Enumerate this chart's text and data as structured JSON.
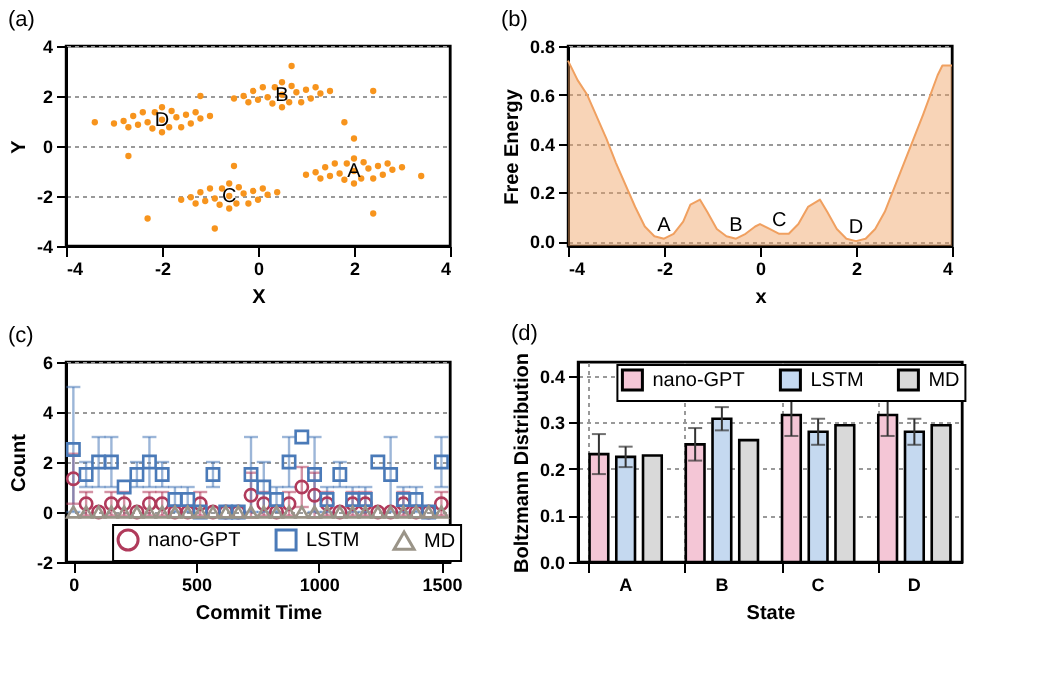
{
  "chart_data": [
    {
      "type": "scatter",
      "title": "(a)",
      "xlabel": "X",
      "ylabel": "Y",
      "xlim": [
        -4,
        4
      ],
      "ylim": [
        -4,
        4
      ],
      "xticks": [
        -4,
        -2,
        0,
        2,
        4
      ],
      "yticks": [
        -4,
        -2,
        0,
        2,
        4
      ],
      "grid": "y",
      "series": [
        {
          "color": "#f7941d",
          "marker": "circle",
          "x": [
            2,
            2.3,
            1.7,
            2.5,
            1.5,
            2.6,
            1.4,
            2.2,
            1.8,
            2.15,
            1.85,
            2.4,
            1.6,
            2.8,
            1.2,
            2.7,
            1.3,
            2,
            2,
            3.0,
            1.0,
            0.5,
            0.8,
            0.2,
            1.0,
            0,
            1.1,
            -0.1,
            0.7,
            0.3,
            0.65,
            0.35,
            0.9,
            0.1,
            1.3,
            -0.3,
            1.2,
            -0.2,
            0.5,
            0.5,
            1.5,
            -0.5,
            -0.6,
            -0.3,
            -0.9,
            -0.1,
            -1.1,
            0,
            -1.2,
            -0.4,
            -0.8,
            -0.45,
            -0.75,
            -0.2,
            -1.0,
            0.2,
            -1.4,
            0.1,
            -1.3,
            -0.6,
            -0.6,
            0.4,
            -1.6,
            -2,
            -1.7,
            -2.3,
            -1.5,
            -2.5,
            -1.4,
            -2.6,
            -1.8,
            -2.2,
            -1.85,
            -2.15,
            -1.6,
            -2.4,
            -1.2,
            -2.8,
            -1.3,
            -2.7,
            -2,
            -2,
            -1.0,
            -3.0,
            3.4,
            2.4,
            -0.9,
            -3.4,
            -2.7,
            -2.3,
            2.0,
            0.7,
            2.4,
            1.8,
            -0.5,
            -1.2
          ],
          "values": [
            -1,
            -0.9,
            -1.1,
            -0.8,
            -1.2,
            -1.15,
            -0.85,
            -0.65,
            -1.35,
            -1.3,
            -0.7,
            -1.3,
            -0.7,
            -0.95,
            -1.05,
            -0.7,
            -1.3,
            -0.5,
            -1.5,
            -0.85,
            -1.15,
            2.05,
            2.15,
            1.95,
            2.25,
            1.85,
            1.9,
            2.2,
            2.4,
            1.7,
            1.75,
            2.35,
            1.75,
            2.35,
            2.1,
            2.0,
            2.35,
            1.75,
            2.55,
            1.55,
            2.2,
            1.9,
            -2,
            -1.9,
            -2.1,
            -1.8,
            -2.2,
            -2.15,
            -1.85,
            -1.65,
            -2.35,
            -2.3,
            -1.7,
            -2.3,
            -1.7,
            -1.95,
            -2.05,
            -1.7,
            -2.3,
            -1.5,
            -2.5,
            -1.85,
            -2.15,
            1.05,
            1.15,
            0.95,
            1.25,
            0.85,
            0.9,
            1.2,
            1.4,
            0.7,
            0.75,
            1.35,
            0.75,
            1.35,
            1.1,
            1.0,
            1.35,
            0.75,
            1.55,
            0.55,
            1.2,
            0.9,
            -1.2,
            -2.7,
            -3.3,
            0.95,
            -0.4,
            -2.9,
            0.3,
            3.2,
            2.2,
            0.95,
            -0.8,
            2.0
          ]
        }
      ],
      "annotations": [
        {
          "text": "A",
          "x": 2,
          "y": -1
        },
        {
          "text": "B",
          "x": 0.5,
          "y": 2.05
        },
        {
          "text": "C",
          "x": -0.6,
          "y": -2
        },
        {
          "text": "D",
          "x": -2,
          "y": 1.05
        }
      ]
    },
    {
      "type": "area",
      "title": "(b)",
      "xlabel": "x",
      "ylabel": "Free Energy",
      "xlim": [
        -4,
        4
      ],
      "ylim": [
        -0.02,
        0.8
      ],
      "xticks": [
        -4,
        -2,
        0,
        2,
        4
      ],
      "yticks": [
        {
          "value": 0,
          "label": "0.0"
        },
        0.2,
        0.4,
        0.6,
        0.8
      ],
      "grid": "y",
      "x": [
        -4,
        -3.8,
        -3.6,
        -3.2,
        -3,
        -2.6,
        -2.4,
        -2.2,
        -2,
        -1.8,
        -1.6,
        -1.45,
        -1.25,
        -1.1,
        -0.9,
        -0.7,
        -0.5,
        -0.3,
        -0.1,
        0,
        0.2,
        0.4,
        0.6,
        0.8,
        1.0,
        1.25,
        1.4,
        1.6,
        1.8,
        2.0,
        2.2,
        2.4,
        2.6,
        3.0,
        3.4,
        3.7,
        3.8,
        4
      ],
      "series": [
        {
          "color": "#f0a060",
          "values": [
            0.74,
            0.66,
            0.6,
            0.42,
            0.32,
            0.14,
            0.06,
            0.02,
            0.01,
            0.03,
            0.08,
            0.15,
            0.17,
            0.12,
            0.05,
            0.02,
            0.01,
            0.03,
            0.06,
            0.07,
            0.05,
            0.03,
            0.03,
            0.07,
            0.14,
            0.17,
            0.12,
            0.05,
            0.01,
            0.0,
            0.01,
            0.05,
            0.12,
            0.32,
            0.52,
            0.68,
            0.72,
            0.72
          ]
        }
      ],
      "annotations": [
        {
          "text": "A",
          "x": -2,
          "y": 0.01
        },
        {
          "text": "B",
          "x": -0.5,
          "y": 0.01
        },
        {
          "text": "C",
          "x": 0.4,
          "y": 0.03
        },
        {
          "text": "D",
          "x": 2.0,
          "y": 0.0
        }
      ]
    },
    {
      "type": "scatter",
      "title": "(c)",
      "xlabel": "Commit Time",
      "ylabel": "Count",
      "xlim": [
        -30,
        1535
      ],
      "ylim": [
        -2,
        6
      ],
      "xticks": [
        0,
        500,
        1000,
        1500
      ],
      "yticks": [
        -2,
        0,
        2,
        4,
        6
      ],
      "grid": "y",
      "legend": "bottom",
      "x": [
        0,
        52,
        103,
        155,
        207,
        259,
        310,
        362,
        414,
        466,
        517,
        569,
        621,
        672,
        724,
        776,
        828,
        879,
        931,
        983,
        1034,
        1086,
        1138,
        1190,
        1241,
        1293,
        1345,
        1397,
        1448,
        1500
      ],
      "series": [
        {
          "name": "nano-GPT",
          "color": "#b03a5b",
          "marker": "circle",
          "values": [
            1.33,
            0.33,
            0,
            0.33,
            0.33,
            0,
            0.33,
            0.33,
            0,
            0,
            0.33,
            0,
            0,
            0,
            0.67,
            0.33,
            0,
            0.33,
            1,
            0.67,
            0.33,
            0,
            0.33,
            0.33,
            0,
            0,
            0.33,
            0,
            0,
            0.33
          ],
          "errors": [
            1,
            0.47,
            null,
            0.47,
            0.47,
            null,
            0.47,
            0.47,
            null,
            null,
            0.47,
            null,
            null,
            null,
            0.9,
            0.47,
            null,
            0.47,
            0.8,
            0.9,
            0.47,
            null,
            0.47,
            0.47,
            null,
            null,
            0.47,
            null,
            null,
            0.47
          ]
        },
        {
          "name": "LSTM",
          "color": "#4a7ab8",
          "marker": "square",
          "values": [
            2.5,
            1.5,
            2,
            2,
            1,
            1.5,
            2,
            1.5,
            0.5,
            0.5,
            0,
            1.5,
            0,
            0,
            1.5,
            1,
            0.5,
            2,
            3,
            1.5,
            0.5,
            1.5,
            0.5,
            0.5,
            2,
            1.5,
            0.5,
            0.5,
            0,
            2
          ],
          "errors": [
            2.5,
            0.5,
            1,
            1,
            null,
            0.5,
            1,
            0.5,
            0.5,
            0.5,
            null,
            0.5,
            null,
            null,
            1.5,
            1,
            0.5,
            1,
            null,
            1.5,
            0.5,
            0.5,
            0.5,
            0.5,
            null,
            1.5,
            0.5,
            0.5,
            null,
            1
          ]
        },
        {
          "name": "MD",
          "color": "#9a9488",
          "marker": "triangle",
          "values": [
            0,
            0,
            0,
            0,
            0,
            0,
            0,
            0,
            0,
            0,
            0,
            0,
            0,
            0,
            0,
            0,
            0,
            0,
            0,
            0,
            0,
            0,
            0,
            0,
            0,
            0,
            0,
            0,
            0,
            0
          ]
        }
      ]
    },
    {
      "type": "bar",
      "title": "(d)",
      "xlabel": "State",
      "ylabel": "Boltzmann Distribution",
      "categories": [
        "A",
        "B",
        "C",
        "D"
      ],
      "ylim": [
        0,
        0.43
      ],
      "yticks": [
        {
          "value": 0,
          "label": "0.0"
        },
        0.1,
        0.2,
        0.3,
        0.4
      ],
      "grid": true,
      "legend": "top",
      "series": [
        {
          "name": "nano-GPT",
          "color": "#f4c6d6",
          "values": [
            0.232,
            0.253,
            0.316,
            0.316
          ],
          "errors": [
            0.043,
            0.035,
            0.045,
            0.045
          ]
        },
        {
          "name": "LSTM",
          "color": "#c5d9f0",
          "values": [
            0.226,
            0.308,
            0.28,
            0.28
          ],
          "errors": [
            0.022,
            0.025,
            0.028,
            0.028
          ]
        },
        {
          "name": "MD",
          "color": "#d9d9d9",
          "values": [
            0.229,
            0.262,
            0.294,
            0.294
          ]
        }
      ]
    }
  ]
}
